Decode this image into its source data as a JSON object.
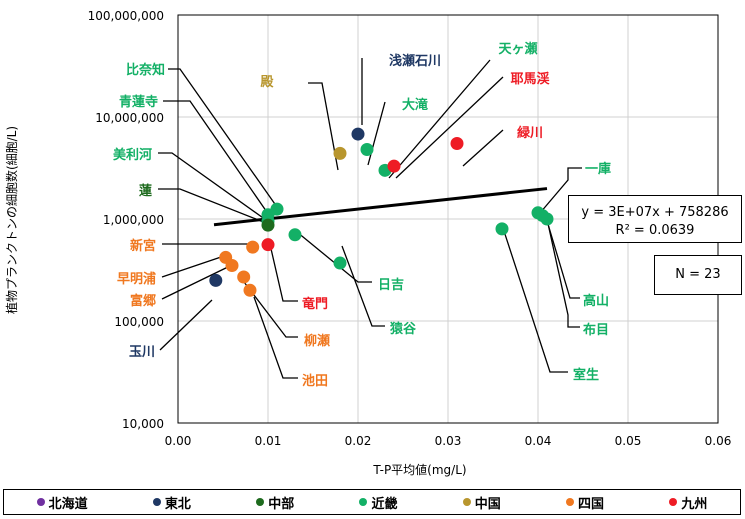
{
  "chart_data": {
    "type": "scatter",
    "xlabel": "T-P平均値(mg/L)",
    "ylabel": "植物プランクトンの細胞数(細胞/L)",
    "xlim": [
      0,
      0.06
    ],
    "ylim": [
      10000,
      100000000
    ],
    "yscale": "log",
    "x_ticks": [
      "0.00",
      "0.01",
      "0.02",
      "0.03",
      "0.04",
      "0.05",
      "0.06"
    ],
    "y_ticks": [
      "10,000",
      "100,000",
      "1,000,000",
      "10,000,000",
      "100,000,000"
    ],
    "regions": [
      {
        "name": "北海道",
        "color": "#7030a0"
      },
      {
        "name": "東北",
        "color": "#1f3864"
      },
      {
        "name": "中部",
        "color": "#1e6b1e"
      },
      {
        "name": "近畿",
        "color": "#13b066"
      },
      {
        "name": "中国",
        "color": "#b8962e"
      },
      {
        "name": "四国",
        "color": "#f07820"
      },
      {
        "name": "九州",
        "color": "#ee1c25"
      }
    ],
    "points": [
      {
        "name": "浅瀬石川",
        "x": 0.02,
        "y": 6800000,
        "region": "東北"
      },
      {
        "name": "玉川",
        "x": 0.0042,
        "y": 250000,
        "region": "東北"
      },
      {
        "name": "天ヶ瀬",
        "x": 0.023,
        "y": 3000000,
        "region": "近畿"
      },
      {
        "name": "大滝",
        "x": 0.021,
        "y": 4800000,
        "region": "近畿"
      },
      {
        "name": "耶馬渓",
        "x": 0.024,
        "y": 3300000,
        "region": "九州"
      },
      {
        "name": "緑川",
        "x": 0.031,
        "y": 5500000,
        "region": "九州"
      },
      {
        "name": "殿",
        "x": 0.018,
        "y": 4400000,
        "region": "中国"
      },
      {
        "name": "比奈知",
        "x": 0.011,
        "y": 1250000,
        "region": "近畿"
      },
      {
        "name": "青蓮寺",
        "x": 0.01,
        "y": 1100000,
        "region": "近畿"
      },
      {
        "name": "美利河",
        "x": 0.01,
        "y": 950000,
        "region": "近畿"
      },
      {
        "name": "蓮",
        "x": 0.01,
        "y": 870000,
        "region": "中部"
      },
      {
        "name": "一庫",
        "x": 0.04,
        "y": 1150000,
        "region": "近畿"
      },
      {
        "name": "布目",
        "x": 0.041,
        "y": 1000000,
        "region": "近畿"
      },
      {
        "name": "高山",
        "x": 0.0405,
        "y": 1080000,
        "region": "近畿"
      },
      {
        "name": "室生",
        "x": 0.036,
        "y": 800000,
        "region": "近畿"
      },
      {
        "name": "日吉",
        "x": 0.013,
        "y": 700000,
        "region": "近畿"
      },
      {
        "name": "猿谷",
        "x": 0.018,
        "y": 370000,
        "region": "近畿"
      },
      {
        "name": "竜門",
        "x": 0.01,
        "y": 560000,
        "region": "九州"
      },
      {
        "name": "新宮",
        "x": 0.0083,
        "y": 530000,
        "region": "四国"
      },
      {
        "name": "早明浦",
        "x": 0.0053,
        "y": 420000,
        "region": "四国"
      },
      {
        "name": "富郷",
        "x": 0.006,
        "y": 350000,
        "region": "四国"
      },
      {
        "name": "柳瀬",
        "x": 0.0073,
        "y": 270000,
        "region": "四国"
      },
      {
        "name": "池田",
        "x": 0.008,
        "y": 200000,
        "region": "四国"
      }
    ],
    "trendline": {
      "slope": 30000000,
      "intercept": 758286,
      "x_range": [
        0.004,
        0.041
      ]
    },
    "equation": "y = 3E+07x + 758286",
    "r2": "R² = 0.0639",
    "n_label": "N = 23"
  }
}
